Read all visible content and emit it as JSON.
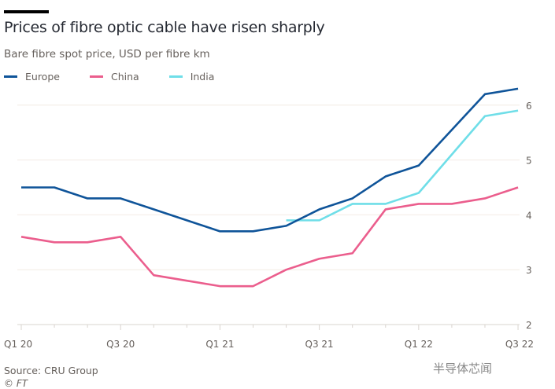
{
  "title": "Prices of fibre optic cable have risen sharply",
  "subtitle": "Bare fibre spot price, USD per fibre km",
  "source": "Source: CRU Group",
  "copyright": "© FT",
  "watermark": "半导体芯闻",
  "chart_data": {
    "type": "line",
    "title": "Prices of fibre optic cable have risen sharply",
    "subtitle": "Bare fibre spot price, USD per fibre km",
    "x_tick_labels": [
      "Q1 20",
      "Q3 20",
      "Q1 21",
      "Q3 21",
      "Q1 22",
      "Q3 22"
    ],
    "x_tick_positions": [
      0,
      3,
      6,
      9,
      12,
      15
    ],
    "x_points": 16,
    "ylim": [
      2,
      6.4
    ],
    "y_ticks": [
      2,
      3,
      4,
      5,
      6
    ],
    "y_axis_side": "right",
    "grid": true,
    "legend_position": "top-left",
    "series": [
      {
        "name": "Europe",
        "color": "#0f5499",
        "start": 0,
        "values": [
          4.5,
          4.5,
          4.3,
          4.3,
          4.1,
          3.9,
          3.7,
          3.7,
          3.8,
          4.1,
          4.3,
          4.7,
          4.9,
          5.55,
          6.2,
          6.3
        ]
      },
      {
        "name": "China",
        "color": "#eb5e8d",
        "start": 0,
        "values": [
          3.6,
          3.5,
          3.5,
          3.6,
          2.9,
          2.8,
          2.7,
          2.7,
          3.0,
          3.2,
          3.3,
          4.1,
          4.2,
          4.2,
          4.3,
          4.5
        ]
      },
      {
        "name": "India",
        "color": "#6fdee8",
        "start": 8,
        "values": [
          3.9,
          3.9,
          4.2,
          4.2,
          4.4,
          5.1,
          5.8,
          5.9
        ]
      }
    ]
  }
}
